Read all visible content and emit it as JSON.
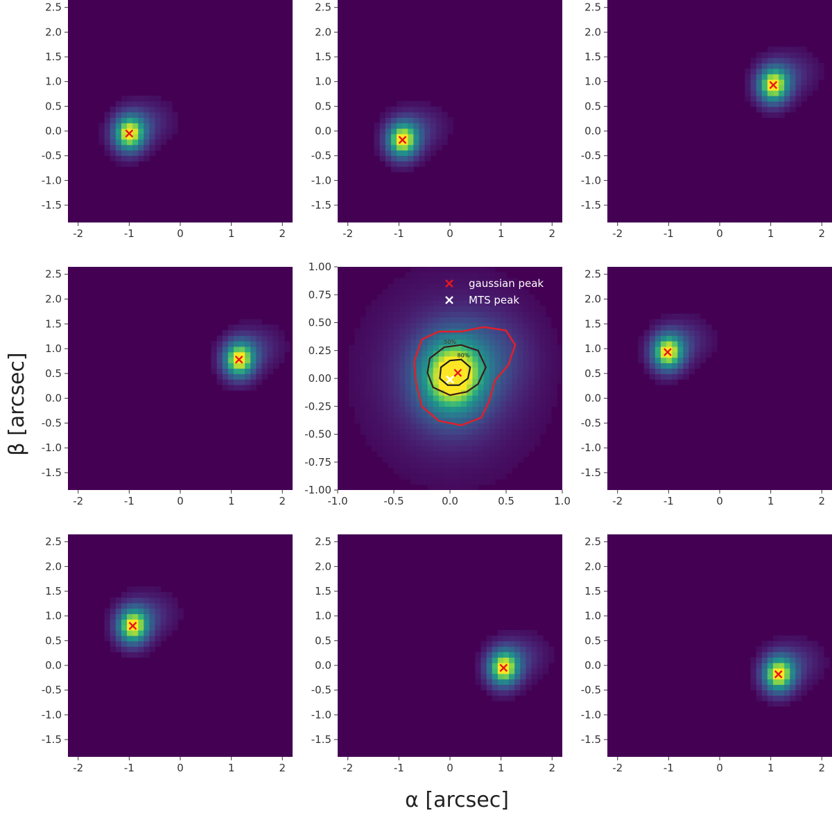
{
  "chart_data": {
    "type": "heatmap",
    "layout": "3x3 grid",
    "xlabel": "α [arcsec]",
    "ylabel": "β [arcsec]",
    "colormap": "viridis",
    "colors": {
      "background": "#440154",
      "gaussian_peak_marker": "#e8161b",
      "mts_peak_marker": "#ffffff",
      "contour_outer": "#e0202a",
      "contour_mid": "#3a1a1a",
      "contour_inner": "#1a1a1a"
    },
    "outer_panels": {
      "xlim": [
        -2.2,
        2.2
      ],
      "ylim": [
        -1.85,
        2.65
      ],
      "xticks": [
        "-2",
        "-1",
        "0",
        "1",
        "2"
      ],
      "xtick_values": [
        -2,
        -1,
        0,
        1,
        2
      ],
      "yticks": [
        "2.5",
        "2.0",
        "1.5",
        "1.0",
        "0.5",
        "0.0",
        "-0.5",
        "-1.0",
        "-1.5"
      ],
      "ytick_values": [
        2.5,
        2.0,
        1.5,
        1.0,
        0.5,
        0.0,
        -0.5,
        -1.0,
        -1.5
      ]
    },
    "center_panel": {
      "xlim": [
        -1.0,
        1.0
      ],
      "ylim": [
        -1.0,
        1.0
      ],
      "xticks": [
        "-1.0",
        "-0.5",
        "0.0",
        "0.5",
        "1.0"
      ],
      "xtick_values": [
        -1.0,
        -0.5,
        0.0,
        0.5,
        1.0
      ],
      "yticks": [
        "1.00",
        "0.75",
        "0.50",
        "0.25",
        "0.00",
        "-0.25",
        "-0.50",
        "-0.75",
        "-1.00"
      ],
      "ytick_values": [
        1.0,
        0.75,
        0.5,
        0.25,
        0.0,
        -0.25,
        -0.5,
        -0.75,
        -1.0
      ],
      "legend": [
        {
          "label": "gaussian peak",
          "marker": "x",
          "color": "#e8161b"
        },
        {
          "label": "MTS peak",
          "marker": "x",
          "color": "#ffffff"
        }
      ],
      "legend_position": "top-right",
      "gaussian_peak": [
        0.07,
        0.05
      ],
      "mts_peak": [
        0.0,
        -0.01
      ],
      "contour_labels": [
        "50%",
        "80%"
      ]
    },
    "panels": [
      {
        "row": 0,
        "col": 0,
        "gaussian_peak": [
          -1.0,
          -0.05
        ]
      },
      {
        "row": 0,
        "col": 1,
        "gaussian_peak": [
          -0.93,
          -0.18
        ]
      },
      {
        "row": 0,
        "col": 2,
        "gaussian_peak": [
          1.05,
          0.93
        ]
      },
      {
        "row": 1,
        "col": 0,
        "gaussian_peak": [
          1.15,
          0.78
        ]
      },
      {
        "row": 1,
        "col": 2,
        "gaussian_peak": [
          -1.02,
          0.93
        ]
      },
      {
        "row": 2,
        "col": 0,
        "gaussian_peak": [
          -0.93,
          0.8
        ]
      },
      {
        "row": 2,
        "col": 1,
        "gaussian_peak": [
          1.05,
          -0.05
        ]
      },
      {
        "row": 2,
        "col": 2,
        "gaussian_peak": [
          1.15,
          -0.18
        ]
      }
    ]
  }
}
